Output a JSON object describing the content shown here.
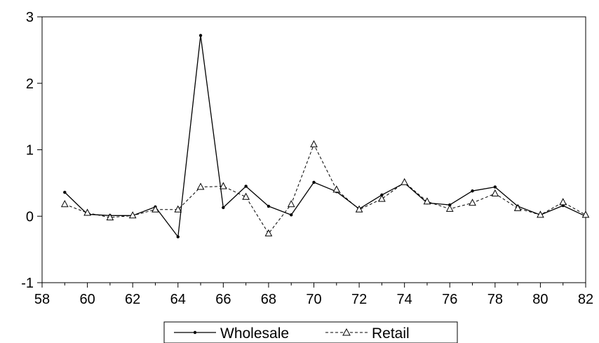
{
  "chart_data": {
    "type": "line",
    "xlim": [
      58,
      82
    ],
    "ylim": [
      -1,
      3
    ],
    "x_ticks": [
      58,
      60,
      62,
      64,
      66,
      68,
      70,
      72,
      74,
      76,
      78,
      80,
      82
    ],
    "y_ticks": [
      -1,
      0,
      1,
      2,
      3
    ],
    "grid": false,
    "legend_position": "bottom-center",
    "x": [
      59,
      60,
      61,
      62,
      63,
      64,
      65,
      66,
      67,
      68,
      69,
      70,
      71,
      72,
      73,
      74,
      75,
      76,
      77,
      78,
      79,
      80,
      81,
      82
    ],
    "series": [
      {
        "name": "Wholesale",
        "style": "solid",
        "marker": "dot",
        "color": "#000000",
        "values": [
          0.36,
          0.03,
          0.01,
          0.01,
          0.14,
          -0.31,
          2.72,
          0.13,
          0.45,
          0.15,
          0.02,
          0.51,
          0.37,
          0.11,
          0.32,
          0.5,
          0.2,
          0.17,
          0.38,
          0.44,
          0.15,
          0.02,
          0.16,
          0.0
        ]
      },
      {
        "name": "Retail",
        "style": "dashed",
        "marker": "triangle",
        "color": "#000000",
        "values": [
          0.18,
          0.05,
          -0.02,
          0.01,
          0.1,
          0.1,
          0.44,
          0.45,
          0.29,
          -0.26,
          0.18,
          1.08,
          0.4,
          0.1,
          0.26,
          0.51,
          0.22,
          0.11,
          0.2,
          0.34,
          0.12,
          0.02,
          0.21,
          0.02
        ]
      }
    ]
  }
}
